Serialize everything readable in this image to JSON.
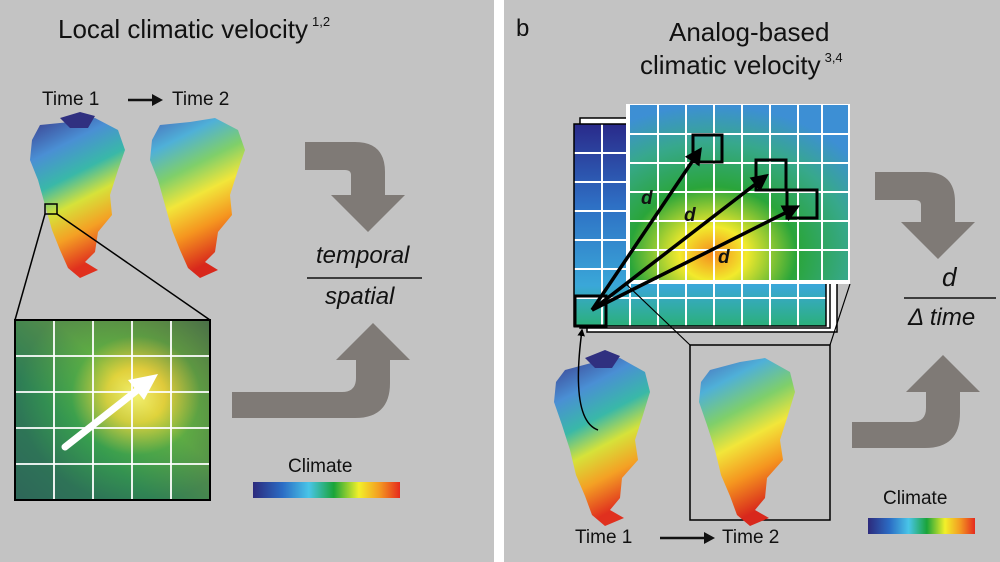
{
  "panel_a": {
    "title": "Local climatic velocity",
    "title_sup": "1,2",
    "time1": "Time 1",
    "time2": "Time 2",
    "numerator": "temporal",
    "denominator": "spatial",
    "legend_label": "Climate"
  },
  "panel_b": {
    "letter": "b",
    "title_line1": "Analog-based",
    "title_line2": "climatic velocity",
    "title_sup": "3,4",
    "distance_label": "d",
    "numerator": "d",
    "denominator": "Δ time",
    "legend_label": "Climate",
    "time1": "Time 1",
    "time2": "Time 2"
  },
  "colors": {
    "background": "#c3c3c3",
    "flow_arrow": "#7f7a76",
    "grid_line": "#ffffff",
    "cell_outline": "#000000"
  },
  "icons": [
    "north-america-map-icon",
    "curved-flow-arrow-icon",
    "climate-gradient-legend"
  ]
}
